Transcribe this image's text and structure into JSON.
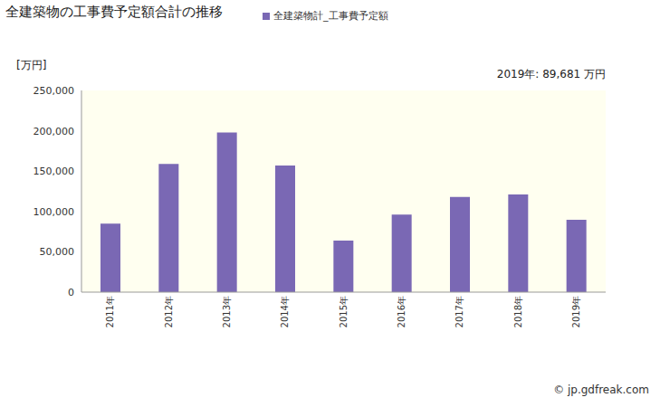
{
  "chart_data": {
    "type": "bar",
    "title": "全建築物の工事費予定額合計の推移",
    "ylabel": "[万円]",
    "annotations": [
      "2019年: 89,681 万円"
    ],
    "source": "© jp.gdfreak.com",
    "categories": [
      "2011年",
      "2012年",
      "2013年",
      "2014年",
      "2015年",
      "2016年",
      "2017年",
      "2018年",
      "2019年"
    ],
    "series": [
      {
        "name": "全建築物計_工事費予定額",
        "color": "#7a68b4",
        "values": [
          85000,
          159000,
          198000,
          157000,
          64000,
          96000,
          118000,
          121000,
          89681
        ]
      }
    ],
    "ylim": [
      0,
      250000
    ],
    "yticks": [
      0,
      {
        "value": 50000,
        "label": "50,000"
      },
      {
        "value": 100000,
        "label": "100,000"
      },
      {
        "value": 150000,
        "label": "150,000"
      },
      {
        "value": 200000,
        "label": "200,000"
      },
      {
        "value": 250000,
        "label": "250,000"
      }
    ],
    "grid": false,
    "legend": "top"
  }
}
